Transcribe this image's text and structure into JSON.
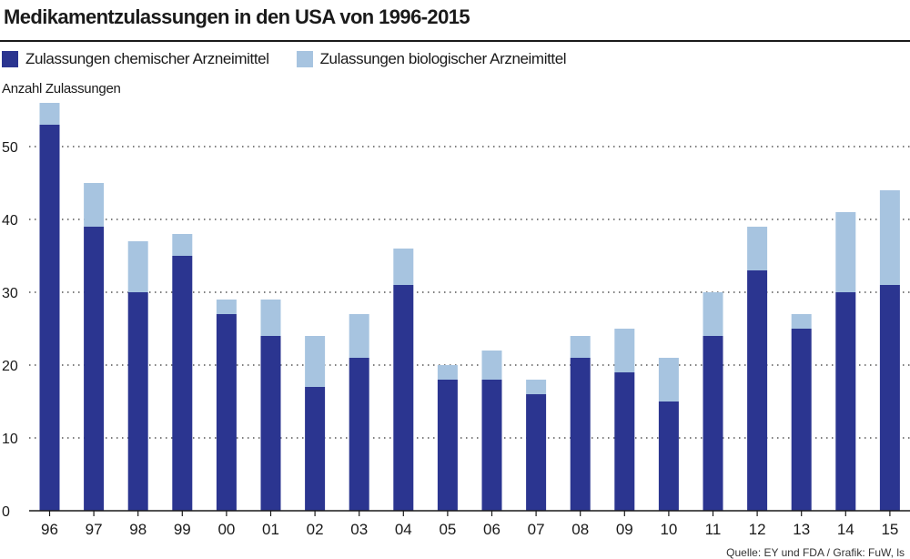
{
  "colors": {
    "chemisch": "#2b3590",
    "biologisch": "#a7c4e0",
    "text": "#1a1a1a",
    "grid": "#333333"
  },
  "chart_data": {
    "type": "bar",
    "stacked": true,
    "title": "Medikamentzulassungen in den USA von 1996-2015",
    "ylabel": "Anzahl Zulassungen",
    "xlabel": "",
    "ylim": [
      0,
      55
    ],
    "yticks": [
      0,
      10,
      20,
      30,
      40,
      50
    ],
    "grid": "dotted horizontal",
    "legend_position": "top-left",
    "categories": [
      "96",
      "97",
      "98",
      "99",
      "00",
      "01",
      "02",
      "03",
      "04",
      "05",
      "06",
      "07",
      "08",
      "09",
      "10",
      "11",
      "12",
      "13",
      "14",
      "15"
    ],
    "series": [
      {
        "name": "Zulassungen chemischer Arzneimittel",
        "values": [
          53,
          39,
          30,
          35,
          27,
          24,
          17,
          21,
          31,
          18,
          18,
          16,
          21,
          19,
          15,
          24,
          33,
          25,
          30,
          31
        ]
      },
      {
        "name": "Zulassungen biologischer Arzneimittel",
        "values": [
          3,
          6,
          7,
          3,
          2,
          5,
          7,
          6,
          5,
          2,
          4,
          2,
          3,
          6,
          6,
          6,
          6,
          2,
          11,
          13
        ]
      }
    ],
    "source": "Quelle: EY und FDA / Grafik: FuW, ls"
  }
}
